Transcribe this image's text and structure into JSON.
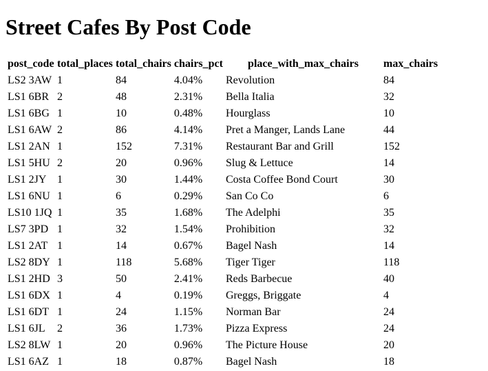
{
  "page": {
    "title": "Street Cafes By Post Code"
  },
  "table": {
    "headers": [
      "post_code",
      "total_places",
      "total_chairs",
      "chairs_pct",
      "place_with_max_chairs",
      "max_chairs"
    ],
    "rows": [
      [
        "LS2 3AW",
        "1",
        "84",
        "4.04%",
        "Revolution",
        "84"
      ],
      [
        "LS1 6BR",
        "2",
        "48",
        "2.31%",
        "Bella Italia",
        "32"
      ],
      [
        "LS1 6BG",
        "1",
        "10",
        "0.48%",
        "Hourglass",
        "10"
      ],
      [
        "LS1 6AW",
        "2",
        "86",
        "4.14%",
        "Pret a Manger, Lands Lane",
        "44"
      ],
      [
        "LS1 2AN",
        "1",
        "152",
        "7.31%",
        "Restaurant Bar and Grill",
        "152"
      ],
      [
        "LS1 5HU",
        "2",
        "20",
        "0.96%",
        "Slug & Lettuce",
        "14"
      ],
      [
        "LS1 2JY",
        "1",
        "30",
        "1.44%",
        "Costa Coffee Bond Court",
        "30"
      ],
      [
        "LS1 6NU",
        "1",
        "6",
        "0.29%",
        "San Co Co",
        "6"
      ],
      [
        "LS10 1JQ",
        "1",
        "35",
        "1.68%",
        "The Adelphi",
        "35"
      ],
      [
        "LS7 3PD",
        "1",
        "32",
        "1.54%",
        "Prohibition",
        "32"
      ],
      [
        "LS1 2AT",
        "1",
        "14",
        "0.67%",
        "Bagel Nash",
        "14"
      ],
      [
        "LS2 8DY",
        "1",
        "118",
        "5.68%",
        "Tiger Tiger",
        "118"
      ],
      [
        "LS1 2HD",
        "3",
        "50",
        "2.41%",
        "Reds Barbecue",
        "40"
      ],
      [
        "LS1 6DX",
        "1",
        "4",
        "0.19%",
        "Greggs, Briggate",
        "4"
      ],
      [
        "LS1 6DT",
        "1",
        "24",
        "1.15%",
        "Norman Bar",
        "24"
      ],
      [
        "LS1 6JL",
        "2",
        "36",
        "1.73%",
        "Pizza Express",
        "24"
      ],
      [
        "LS2 8LW",
        "1",
        "20",
        "0.96%",
        "The Picture House",
        "20"
      ],
      [
        "LS1 6AZ",
        "1",
        "18",
        "0.87%",
        "Bagel Nash",
        "18"
      ]
    ]
  }
}
